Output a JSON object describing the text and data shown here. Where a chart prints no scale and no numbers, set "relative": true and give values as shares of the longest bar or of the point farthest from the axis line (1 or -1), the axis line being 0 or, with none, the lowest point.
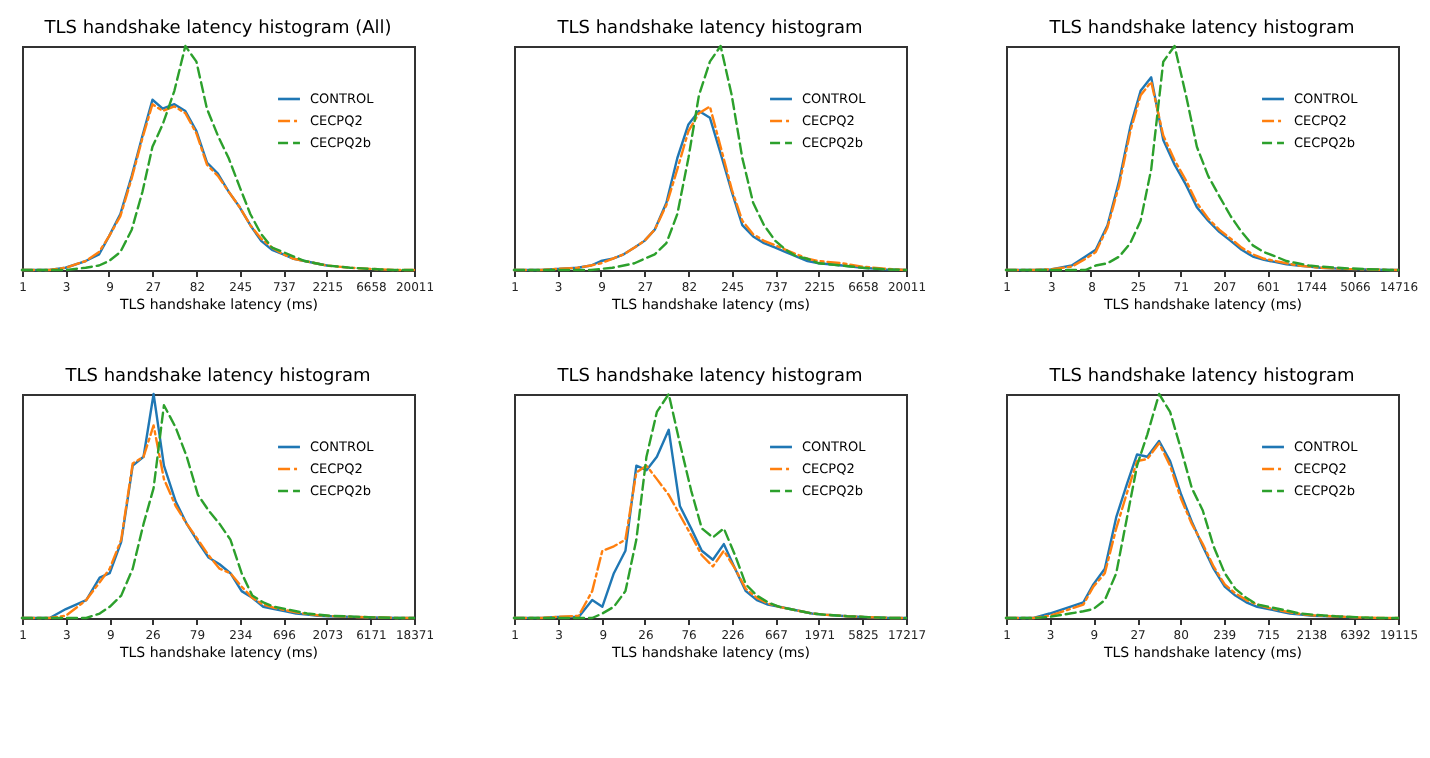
{
  "chart_data": [
    {
      "type": "line",
      "title": "TLS handshake latency histogram (All)",
      "xlabel": "TLS handshake latency (ms)",
      "log": "x",
      "relative": true,
      "legend": "top right",
      "xlim": [
        1,
        20011
      ],
      "xticks": [
        1,
        3,
        9,
        27,
        82,
        245,
        737,
        2215,
        6658,
        20011
      ],
      "x": [
        1,
        2,
        3,
        5,
        7,
        9,
        12,
        16,
        21,
        27,
        35,
        47,
        62,
        82,
        107,
        141,
        185,
        245,
        320,
        421,
        554,
        737,
        960,
        1263,
        1662,
        2215,
        4000,
        6658,
        12000,
        20011
      ],
      "series": [
        {
          "name": "CONTROL",
          "color": "#1f77b4",
          "line_style": "solid",
          "values": [
            0,
            0,
            0.01,
            0.04,
            0.07,
            0.15,
            0.25,
            0.42,
            0.6,
            0.76,
            0.72,
            0.74,
            0.71,
            0.62,
            0.48,
            0.43,
            0.35,
            0.28,
            0.2,
            0.13,
            0.09,
            0.07,
            0.05,
            0.04,
            0.03,
            0.02,
            null,
            null,
            null,
            null
          ]
        },
        {
          "name": "CECPQ2",
          "color": "#ff7f0e",
          "line_style": "dashdot",
          "values": [
            0,
            0,
            0.01,
            0.04,
            0.08,
            0.15,
            0.24,
            0.41,
            0.59,
            0.74,
            0.71,
            0.73,
            0.7,
            0.61,
            0.47,
            0.42,
            0.35,
            0.28,
            0.2,
            0.14,
            0.1,
            0.07,
            0.05,
            0.04,
            0.03,
            0.02,
            0.01,
            0.005,
            0,
            0
          ]
        },
        {
          "name": "CECPQ2b",
          "color": "#2ca02c",
          "line_style": "dashed",
          "values": [
            0,
            0,
            0,
            0.01,
            0.02,
            0.04,
            0.08,
            0.18,
            0.35,
            0.55,
            0.65,
            0.8,
            1.0,
            0.93,
            0.72,
            0.6,
            0.5,
            0.37,
            0.25,
            0.16,
            0.1,
            0.08,
            0.06,
            0.04,
            0.03,
            0.02,
            0.01,
            0.005,
            0,
            0
          ]
        }
      ]
    },
    {
      "type": "line",
      "title": "TLS handshake latency histogram",
      "xlabel": "TLS handshake latency (ms)",
      "log": "x",
      "relative": true,
      "legend": "top right",
      "xlim": [
        1,
        20011
      ],
      "xticks": [
        1,
        3,
        9,
        27,
        82,
        245,
        737,
        2215,
        6658,
        20011
      ],
      "x": [
        1,
        2,
        3,
        5,
        7,
        9,
        12,
        16,
        21,
        27,
        35,
        47,
        62,
        82,
        107,
        141,
        185,
        245,
        320,
        421,
        554,
        737,
        960,
        1263,
        1662,
        2215,
        4000,
        6658,
        12000,
        20011
      ],
      "series": [
        {
          "name": "CONTROL",
          "color": "#1f77b4",
          "line_style": "solid",
          "values": [
            0,
            0,
            0.005,
            0.01,
            0.02,
            0.04,
            0.05,
            0.07,
            0.1,
            0.13,
            0.18,
            0.3,
            0.5,
            0.65,
            0.71,
            0.68,
            0.52,
            0.35,
            0.2,
            0.15,
            0.12,
            0.1,
            0.08,
            0.06,
            0.04,
            0.03,
            0.02,
            0.01,
            0.003,
            0
          ]
        },
        {
          "name": "CECPQ2",
          "color": "#ff7f0e",
          "line_style": "dashdot",
          "values": [
            0,
            0,
            0.005,
            0.01,
            0.02,
            0.03,
            0.05,
            0.07,
            0.1,
            0.13,
            0.18,
            0.29,
            0.45,
            0.62,
            0.7,
            0.73,
            0.55,
            0.36,
            0.22,
            0.16,
            0.13,
            0.11,
            0.09,
            0.07,
            0.05,
            0.04,
            0.03,
            0.015,
            0.005,
            0
          ]
        },
        {
          "name": "CECPQ2b",
          "color": "#2ca02c",
          "line_style": "dashed",
          "values": [
            0,
            0,
            0,
            0,
            0,
            0.005,
            0.01,
            0.02,
            0.03,
            0.05,
            0.07,
            0.12,
            0.25,
            0.5,
            0.78,
            0.93,
            1.0,
            0.78,
            0.5,
            0.3,
            0.2,
            0.13,
            0.09,
            0.06,
            0.05,
            0.03,
            0.02,
            0.01,
            0.003,
            0
          ]
        }
      ]
    },
    {
      "type": "line",
      "title": "TLS handshake latency histogram",
      "xlabel": "TLS handshake latency (ms)",
      "log": "x",
      "relative": true,
      "legend": "top right",
      "xlim": [
        1,
        14716
      ],
      "xticks": [
        1,
        3,
        8,
        25,
        71,
        207,
        601,
        1744,
        5066,
        14716
      ],
      "x": [
        1,
        2,
        3,
        5,
        7,
        9,
        12,
        16,
        21,
        27,
        35,
        47,
        62,
        82,
        107,
        141,
        185,
        245,
        320,
        421,
        554,
        737,
        960,
        1263,
        1662,
        2215,
        4000,
        6658,
        12000,
        14716
      ],
      "series": [
        {
          "name": "CONTROL",
          "color": "#1f77b4",
          "line_style": "solid",
          "values": [
            0,
            0,
            0.003,
            0.02,
            0.06,
            0.09,
            0.2,
            0.4,
            0.64,
            0.8,
            0.86,
            0.58,
            0.47,
            0.38,
            0.28,
            0.22,
            0.17,
            0.13,
            0.09,
            0.06,
            0.045,
            0.035,
            0.025,
            0.02,
            0.015,
            0.01,
            0.005,
            0.003,
            0,
            0
          ]
        },
        {
          "name": "CECPQ2",
          "color": "#ff7f0e",
          "line_style": "dashdot",
          "values": [
            0,
            0,
            0.003,
            0.015,
            0.05,
            0.08,
            0.19,
            0.38,
            0.62,
            0.78,
            0.84,
            0.6,
            0.49,
            0.4,
            0.3,
            0.23,
            0.18,
            0.14,
            0.1,
            0.07,
            0.05,
            0.04,
            0.03,
            0.02,
            0.015,
            0.01,
            0.005,
            0.003,
            0,
            0
          ]
        },
        {
          "name": "CECPQ2b",
          "color": "#2ca02c",
          "line_style": "dashed",
          "values": [
            0,
            0,
            0,
            0,
            0,
            0.02,
            0.03,
            0.06,
            0.12,
            0.22,
            0.45,
            0.93,
            1.0,
            0.78,
            0.55,
            0.42,
            0.33,
            0.24,
            0.17,
            0.11,
            0.08,
            0.06,
            0.04,
            0.03,
            0.02,
            0.015,
            0.008,
            0.004,
            0,
            0
          ]
        }
      ]
    },
    {
      "type": "line",
      "title": "TLS handshake latency histogram",
      "xlabel": "TLS handshake latency (ms)",
      "log": "x",
      "relative": true,
      "legend": "top right",
      "xlim": [
        1,
        18371
      ],
      "xticks": [
        1,
        3,
        9,
        26,
        79,
        234,
        696,
        2073,
        6171,
        18371
      ],
      "x": [
        1,
        2,
        3,
        5,
        7,
        9,
        12,
        16,
        21,
        27,
        35,
        47,
        62,
        82,
        107,
        141,
        185,
        245,
        320,
        421,
        554,
        737,
        960,
        1263,
        1662,
        2215,
        4000,
        6658,
        12000,
        18371
      ],
      "series": [
        {
          "name": "CONTROL",
          "color": "#1f77b4",
          "line_style": "solid",
          "values": [
            0,
            0,
            0.04,
            0.08,
            0.18,
            0.2,
            0.34,
            0.68,
            0.72,
            1.0,
            0.68,
            0.52,
            0.42,
            0.34,
            0.27,
            0.24,
            0.2,
            0.12,
            0.09,
            0.05,
            0.04,
            0.03,
            0.02,
            0.015,
            0.01,
            0.008,
            0.005,
            0.003,
            0,
            0
          ]
        },
        {
          "name": "CECPQ2",
          "color": "#ff7f0e",
          "line_style": "dashdot",
          "values": [
            0,
            0,
            0.01,
            0.08,
            0.16,
            0.22,
            0.35,
            0.69,
            0.72,
            0.86,
            0.62,
            0.5,
            0.42,
            0.35,
            0.28,
            0.22,
            0.2,
            0.14,
            0.09,
            0.06,
            0.045,
            0.035,
            0.025,
            0.018,
            0.012,
            0.009,
            0.005,
            0.003,
            0,
            0
          ]
        },
        {
          "name": "CECPQ2b",
          "color": "#2ca02c",
          "line_style": "dashed",
          "values": [
            0,
            0,
            0,
            0,
            0.02,
            0.05,
            0.1,
            0.22,
            0.42,
            0.58,
            0.95,
            0.85,
            0.72,
            0.55,
            0.48,
            0.42,
            0.35,
            0.2,
            0.1,
            0.07,
            0.05,
            0.04,
            0.03,
            0.02,
            0.015,
            0.01,
            0.006,
            0.003,
            0,
            0
          ]
        }
      ]
    },
    {
      "type": "line",
      "title": "TLS handshake latency histogram",
      "xlabel": "TLS handshake latency (ms)",
      "log": "x",
      "relative": true,
      "legend": "top right",
      "xlim": [
        1,
        17217
      ],
      "xticks": [
        1,
        3,
        9,
        26,
        76,
        226,
        667,
        1971,
        5825,
        17217
      ],
      "x": [
        1,
        2,
        3,
        5,
        7,
        9,
        12,
        16,
        21,
        27,
        35,
        47,
        62,
        82,
        107,
        141,
        185,
        245,
        320,
        421,
        554,
        737,
        960,
        1263,
        1662,
        2215,
        4000,
        6658,
        12000,
        17217
      ],
      "series": [
        {
          "name": "CONTROL",
          "color": "#1f77b4",
          "line_style": "solid",
          "values": [
            0,
            0,
            0.005,
            0.005,
            0.08,
            0.05,
            0.2,
            0.3,
            0.68,
            0.66,
            0.72,
            0.84,
            0.5,
            0.4,
            0.3,
            0.26,
            0.33,
            0.22,
            0.12,
            0.08,
            0.06,
            0.05,
            0.04,
            0.03,
            0.02,
            0.015,
            0.008,
            0.004,
            0,
            0
          ]
        },
        {
          "name": "CECPQ2",
          "color": "#ff7f0e",
          "line_style": "dashdot",
          "values": [
            0,
            0,
            0.005,
            0.01,
            0.12,
            0.3,
            0.32,
            0.35,
            0.65,
            0.68,
            0.62,
            0.55,
            0.46,
            0.37,
            0.28,
            0.23,
            0.3,
            0.22,
            0.13,
            0.09,
            0.065,
            0.05,
            0.04,
            0.03,
            0.02,
            0.015,
            0.008,
            0.004,
            0,
            0
          ]
        },
        {
          "name": "CECPQ2b",
          "color": "#2ca02c",
          "line_style": "dashed",
          "values": [
            0,
            0,
            0,
            0,
            0,
            0.02,
            0.05,
            0.12,
            0.35,
            0.72,
            0.92,
            1.0,
            0.78,
            0.57,
            0.4,
            0.36,
            0.4,
            0.28,
            0.15,
            0.1,
            0.07,
            0.05,
            0.04,
            0.03,
            0.02,
            0.015,
            0.008,
            0.004,
            0,
            0
          ]
        }
      ]
    },
    {
      "type": "line",
      "title": "TLS handshake latency histogram",
      "xlabel": "TLS handshake latency (ms)",
      "log": "x",
      "relative": true,
      "legend": "top right",
      "xlim": [
        1,
        19115
      ],
      "xticks": [
        1,
        3,
        9,
        27,
        80,
        239,
        715,
        2138,
        6392,
        19115
      ],
      "x": [
        1,
        2,
        3,
        5,
        7,
        9,
        12,
        16,
        21,
        27,
        35,
        47,
        62,
        82,
        107,
        141,
        185,
        245,
        320,
        421,
        554,
        737,
        960,
        1263,
        1662,
        2215,
        4000,
        6658,
        12000,
        19115
      ],
      "series": [
        {
          "name": "CONTROL",
          "color": "#1f77b4",
          "line_style": "solid",
          "values": [
            0,
            0,
            0.02,
            0.05,
            0.07,
            0.15,
            0.22,
            0.45,
            0.6,
            0.73,
            0.72,
            0.79,
            0.7,
            0.55,
            0.43,
            0.32,
            0.22,
            0.14,
            0.1,
            0.07,
            0.05,
            0.04,
            0.03,
            0.02,
            0.015,
            0.01,
            0.006,
            0.003,
            null,
            null
          ]
        },
        {
          "name": "CECPQ2",
          "color": "#ff7f0e",
          "line_style": "dashdot",
          "values": [
            0,
            0,
            0.01,
            0.04,
            0.06,
            0.14,
            0.2,
            0.4,
            0.56,
            0.7,
            0.71,
            0.78,
            0.68,
            0.53,
            0.42,
            0.33,
            0.23,
            0.15,
            0.11,
            0.08,
            0.06,
            0.045,
            0.035,
            0.025,
            0.018,
            0.012,
            0.007,
            0.003,
            0,
            0
          ]
        },
        {
          "name": "CECPQ2b",
          "color": "#2ca02c",
          "line_style": "dashed",
          "values": [
            0,
            0,
            0.005,
            0.02,
            0.03,
            0.04,
            0.08,
            0.2,
            0.45,
            0.68,
            0.82,
            1.0,
            0.92,
            0.75,
            0.58,
            0.48,
            0.32,
            0.2,
            0.13,
            0.09,
            0.06,
            0.05,
            0.04,
            0.03,
            0.02,
            0.015,
            0.008,
            0.004,
            0,
            0
          ]
        }
      ]
    }
  ]
}
